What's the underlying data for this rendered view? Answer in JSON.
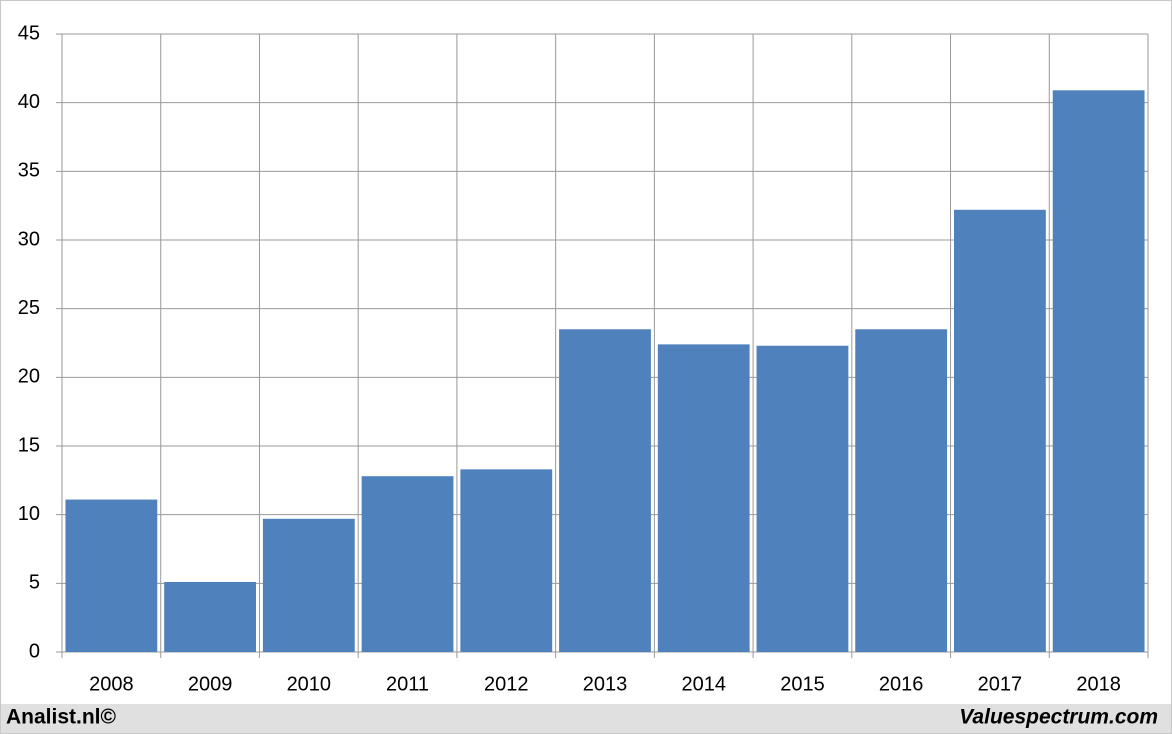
{
  "chart_data": {
    "type": "bar",
    "categories": [
      "2008",
      "2009",
      "2010",
      "2011",
      "2012",
      "2013",
      "2014",
      "2015",
      "2016",
      "2017",
      "2018"
    ],
    "values": [
      11.1,
      5.1,
      9.7,
      12.8,
      13.3,
      23.5,
      22.4,
      22.3,
      23.5,
      32.2,
      40.9
    ],
    "color": "#4f81bd",
    "ylim": [
      0,
      45
    ],
    "yticks": [
      0,
      5,
      10,
      15,
      20,
      25,
      30,
      35,
      40,
      45
    ],
    "grid": true,
    "annotations": [
      "Analist.nl©",
      "Valuespectrum.com"
    ]
  }
}
